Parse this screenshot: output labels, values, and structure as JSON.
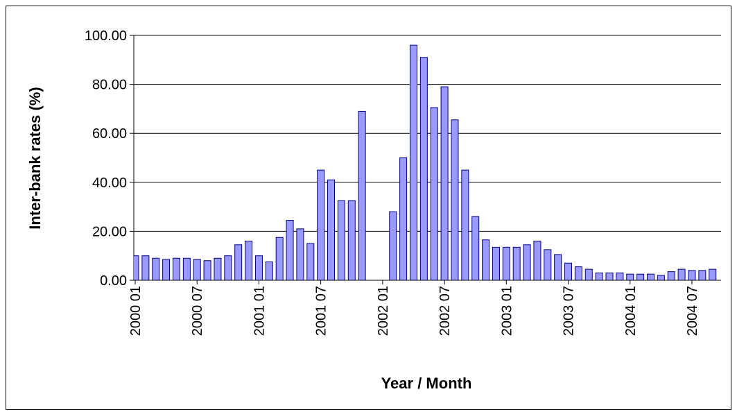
{
  "chart_data": {
    "type": "bar",
    "x_label": "Year / Month",
    "y_label": "Inter-bank rates (%)",
    "categories": [
      "2000 01",
      null,
      null,
      null,
      null,
      null,
      "2000 07",
      null,
      null,
      null,
      null,
      null,
      "2001 01",
      null,
      null,
      null,
      null,
      null,
      "2001 07",
      null,
      null,
      null,
      null,
      null,
      "2002 01",
      null,
      null,
      null,
      null,
      null,
      "2002 07",
      null,
      null,
      null,
      null,
      null,
      "2003 01",
      null,
      null,
      null,
      null,
      null,
      "2003 07",
      null,
      null,
      null,
      null,
      null,
      "2004 01",
      null,
      null,
      null,
      null,
      null,
      "2004 07",
      null,
      null
    ],
    "values": [
      10,
      10,
      9,
      8.5,
      9,
      9,
      8.5,
      8,
      9,
      10,
      14.5,
      16,
      10,
      7.5,
      17.5,
      24.5,
      21,
      15,
      45,
      41,
      32.5,
      32.5,
      69,
      null,
      null,
      28,
      50,
      96,
      91,
      70.5,
      79,
      65.5,
      45,
      26,
      16.5,
      13.5,
      13.5,
      13.5,
      14.5,
      16,
      12.5,
      10.5,
      7,
      5.5,
      4.5,
      3,
      3,
      3,
      2.5,
      2.5,
      2.5,
      2,
      3.5,
      4.5,
      4,
      4,
      4.5
    ],
    "color": "#9999ff",
    "ylim": [
      0,
      100
    ],
    "yticks": [
      {
        "value": 0,
        "label": "0.00"
      },
      {
        "value": 20,
        "label": "20.00"
      },
      {
        "value": 40,
        "label": "40.00"
      },
      {
        "value": 60,
        "label": "60.00"
      },
      {
        "value": 80,
        "label": "80.00"
      },
      {
        "value": 100,
        "label": "100.00"
      }
    ],
    "grid": true
  }
}
